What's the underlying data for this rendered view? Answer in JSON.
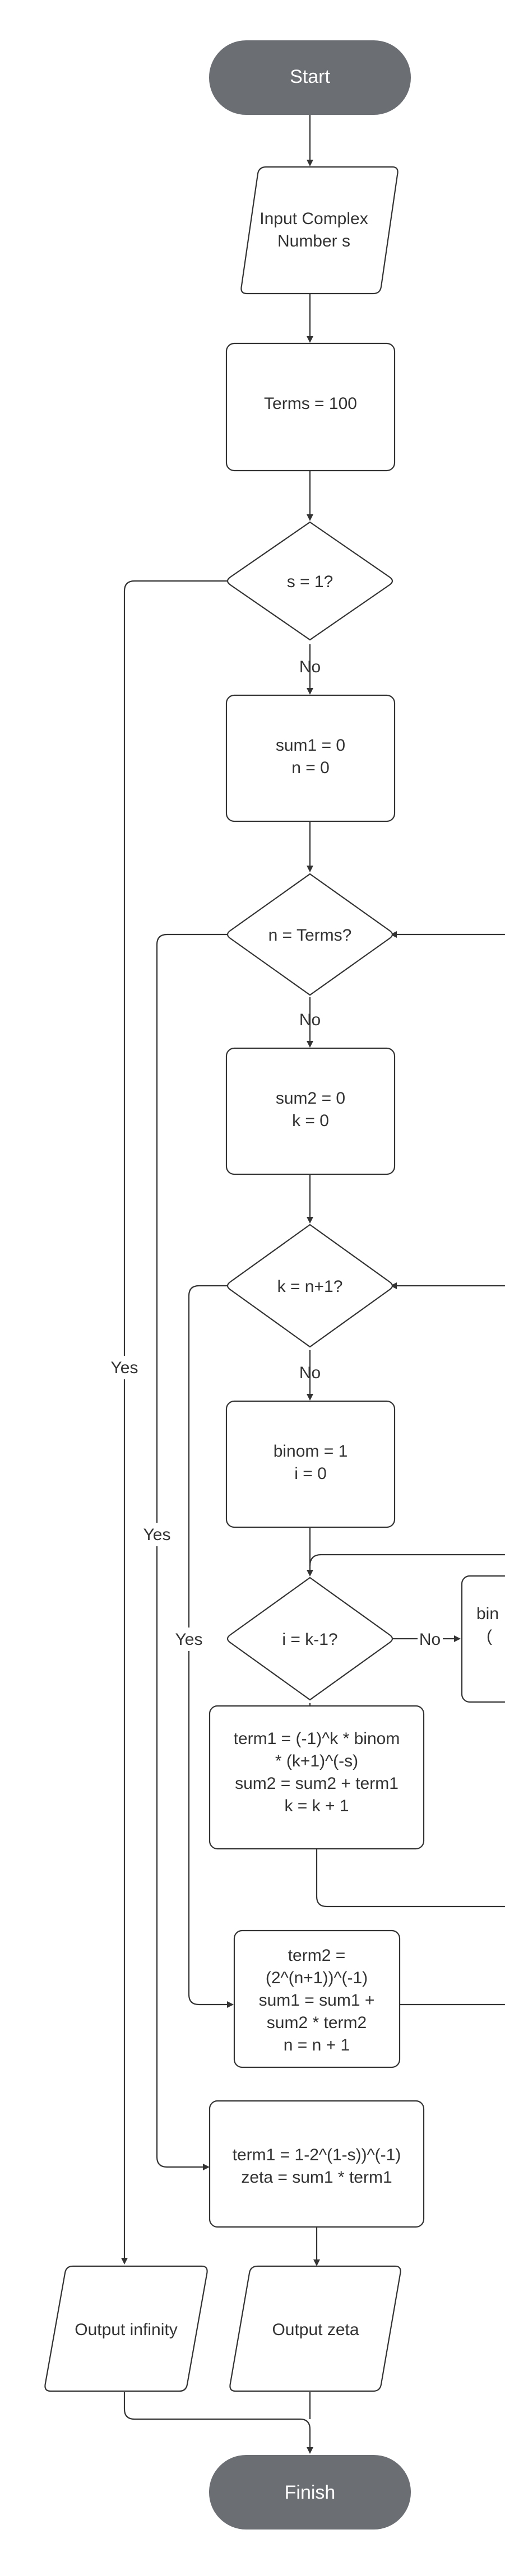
{
  "colors": {
    "terminal_fill": "#6b6e73",
    "stroke": "#333333",
    "terminal_text": "#ffffff"
  },
  "nodes": {
    "start": "Start",
    "input": [
      "Input Complex",
      "Number s"
    ],
    "terms": "Terms = 100",
    "dec_s1": "s = 1?",
    "init1": [
      "sum1 = 0",
      "n = 0"
    ],
    "dec_n": "n = Terms?",
    "init2": [
      "sum2 = 0",
      "k = 0"
    ],
    "dec_k": "k = n+1?",
    "init3": [
      "binom = 1",
      "i = 0"
    ],
    "dec_i": "i = k-1?",
    "binom_partial": [
      "bin",
      "("
    ],
    "calc1": [
      "term1 = (-1)^k * binom",
      "* (k+1)^(-s)",
      "sum2 = sum2 + term1",
      "k = k + 1"
    ],
    "calc2": [
      "term2 =",
      "(2^(n+1))^(-1)",
      "sum1 = sum1 +",
      "sum2 * term2",
      "n = n + 1"
    ],
    "calc3": [
      "term1 = 1-2^(1-s))^(-1)",
      "zeta = sum1 * term1"
    ],
    "out_inf": "Output infinity",
    "out_zeta": "Output zeta",
    "finish": "Finish"
  },
  "edges": {
    "no": "No",
    "yes": "Yes"
  }
}
